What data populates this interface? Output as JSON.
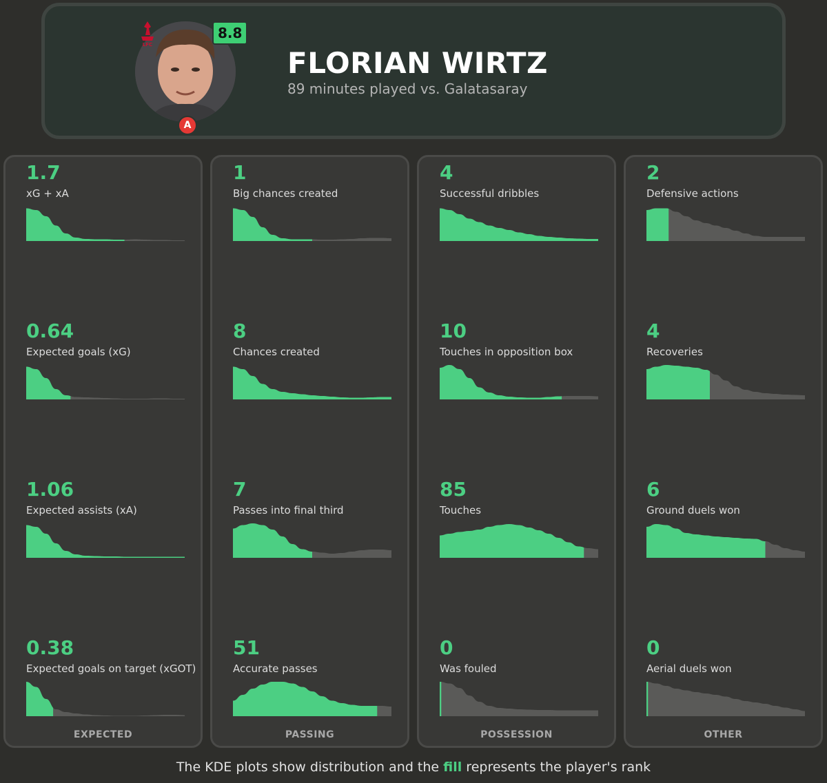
{
  "header": {
    "player_name": "FLORIAN WIRTZ",
    "subtitle": "89 minutes played vs. Galatasaray",
    "rating": "8.8",
    "position_badge": "A",
    "club_badge_text": "LFC"
  },
  "colors": {
    "fill": "#4ccf83",
    "unfilled": "#5a5a58",
    "background": "#2e2e2b",
    "panel": "#383836",
    "rating_bg": "#3ecf74",
    "position_bg": "#e53935",
    "club_red": "#c8102e"
  },
  "footer": {
    "before": "The KDE plots show distribution and the ",
    "highlight": "fill",
    "after": " represents the player's rank"
  },
  "chart_data": {
    "type": "area",
    "description_of_fill": "fraction of the KDE curve filled = player's rank",
    "panels": [
      {
        "category": "EXPECTED",
        "stats": [
          {
            "value": "1.7",
            "label": "xG + xA",
            "fill": 0.62,
            "curve": [
              0.95,
              0.9,
              0.72,
              0.45,
              0.22,
              0.1,
              0.06,
              0.05,
              0.05,
              0.04,
              0.04,
              0.05,
              0.04,
              0.03,
              0.03,
              0.02,
              0.02
            ]
          },
          {
            "value": "0.64",
            "label": "Expected goals (xG)",
            "fill": 0.28,
            "curve": [
              0.95,
              0.88,
              0.62,
              0.3,
              0.12,
              0.07,
              0.06,
              0.05,
              0.04,
              0.03,
              0.02,
              0.02,
              0.02,
              0.03,
              0.03,
              0.02,
              0.02
            ]
          },
          {
            "value": "1.06",
            "label": "Expected assists (xA)",
            "fill": 1.0,
            "curve": [
              0.95,
              0.9,
              0.7,
              0.42,
              0.2,
              0.1,
              0.06,
              0.05,
              0.04,
              0.04,
              0.03,
              0.03,
              0.03,
              0.03,
              0.03,
              0.03,
              0.03
            ]
          },
          {
            "value": "0.38",
            "label": "Expected goals on target (xGOT)",
            "fill": 0.17,
            "curve": [
              1.0,
              0.85,
              0.5,
              0.2,
              0.12,
              0.08,
              0.05,
              0.03,
              0.02,
              0.01,
              0.01,
              0.01,
              0.02,
              0.03,
              0.04,
              0.04,
              0.03
            ]
          }
        ]
      },
      {
        "category": "PASSING",
        "stats": [
          {
            "value": "1",
            "label": "Big chances created",
            "fill": 0.5,
            "curve": [
              0.95,
              0.9,
              0.7,
              0.4,
              0.18,
              0.08,
              0.05,
              0.05,
              0.05,
              0.04,
              0.04,
              0.05,
              0.06,
              0.08,
              0.09,
              0.09,
              0.08
            ]
          },
          {
            "value": "8",
            "label": "Chances created",
            "fill": 1.0,
            "curve": [
              0.95,
              0.88,
              0.68,
              0.45,
              0.3,
              0.22,
              0.18,
              0.15,
              0.12,
              0.1,
              0.08,
              0.06,
              0.05,
              0.05,
              0.06,
              0.07,
              0.07
            ]
          },
          {
            "value": "7",
            "label": "Passes into final third",
            "fill": 0.5,
            "curve": [
              0.85,
              0.95,
              1.0,
              0.95,
              0.82,
              0.62,
              0.4,
              0.25,
              0.18,
              0.15,
              0.12,
              0.14,
              0.18,
              0.22,
              0.24,
              0.24,
              0.22
            ]
          },
          {
            "value": "51",
            "label": "Accurate passes",
            "fill": 0.91,
            "curve": [
              0.45,
              0.62,
              0.8,
              0.92,
              1.0,
              1.0,
              0.95,
              0.85,
              0.72,
              0.58,
              0.45,
              0.38,
              0.33,
              0.3,
              0.3,
              0.3,
              0.28
            ]
          }
        ]
      },
      {
        "category": "POSSESSION",
        "stats": [
          {
            "value": "4",
            "label": "Successful dribbles",
            "fill": 1.0,
            "curve": [
              0.95,
              0.9,
              0.78,
              0.65,
              0.55,
              0.45,
              0.38,
              0.32,
              0.25,
              0.2,
              0.15,
              0.12,
              0.1,
              0.08,
              0.07,
              0.06,
              0.06
            ]
          },
          {
            "value": "10",
            "label": "Touches in opposition box",
            "fill": 0.77,
            "curve": [
              0.92,
              1.0,
              0.88,
              0.62,
              0.35,
              0.2,
              0.12,
              0.08,
              0.06,
              0.05,
              0.05,
              0.07,
              0.09,
              0.1,
              0.1,
              0.1,
              0.09
            ]
          },
          {
            "value": "85",
            "label": "Touches",
            "fill": 0.91,
            "curve": [
              0.65,
              0.7,
              0.75,
              0.78,
              0.82,
              0.9,
              0.95,
              0.98,
              0.95,
              0.88,
              0.8,
              0.7,
              0.58,
              0.45,
              0.33,
              0.28,
              0.25
            ]
          },
          {
            "value": "0",
            "label": "Was fouled",
            "fill": 0.01,
            "curve": [
              1.0,
              0.95,
              0.82,
              0.6,
              0.42,
              0.3,
              0.24,
              0.22,
              0.2,
              0.19,
              0.18,
              0.18,
              0.17,
              0.17,
              0.17,
              0.17,
              0.17
            ]
          }
        ]
      },
      {
        "category": "OTHER",
        "stats": [
          {
            "value": "2",
            "label": "Defensive actions",
            "fill": 0.14,
            "curve": [
              0.9,
              0.95,
              0.95,
              0.85,
              0.72,
              0.6,
              0.52,
              0.45,
              0.38,
              0.3,
              0.22,
              0.15,
              0.12,
              0.12,
              0.12,
              0.12,
              0.12
            ]
          },
          {
            "value": "4",
            "label": "Recoveries",
            "fill": 0.4,
            "curve": [
              0.88,
              0.95,
              1.0,
              0.98,
              0.95,
              0.92,
              0.86,
              0.72,
              0.55,
              0.38,
              0.28,
              0.22,
              0.18,
              0.16,
              0.14,
              0.13,
              0.12
            ]
          },
          {
            "value": "6",
            "label": "Ground duels won",
            "fill": 0.75,
            "curve": [
              0.9,
              0.98,
              0.95,
              0.85,
              0.72,
              0.68,
              0.65,
              0.62,
              0.6,
              0.58,
              0.56,
              0.55,
              0.48,
              0.38,
              0.28,
              0.22,
              0.18
            ]
          },
          {
            "value": "0",
            "label": "Aerial duels won",
            "fill": 0.01,
            "curve": [
              1.0,
              0.95,
              0.88,
              0.8,
              0.75,
              0.7,
              0.66,
              0.62,
              0.57,
              0.5,
              0.44,
              0.4,
              0.36,
              0.3,
              0.25,
              0.2,
              0.15
            ]
          }
        ]
      }
    ]
  }
}
